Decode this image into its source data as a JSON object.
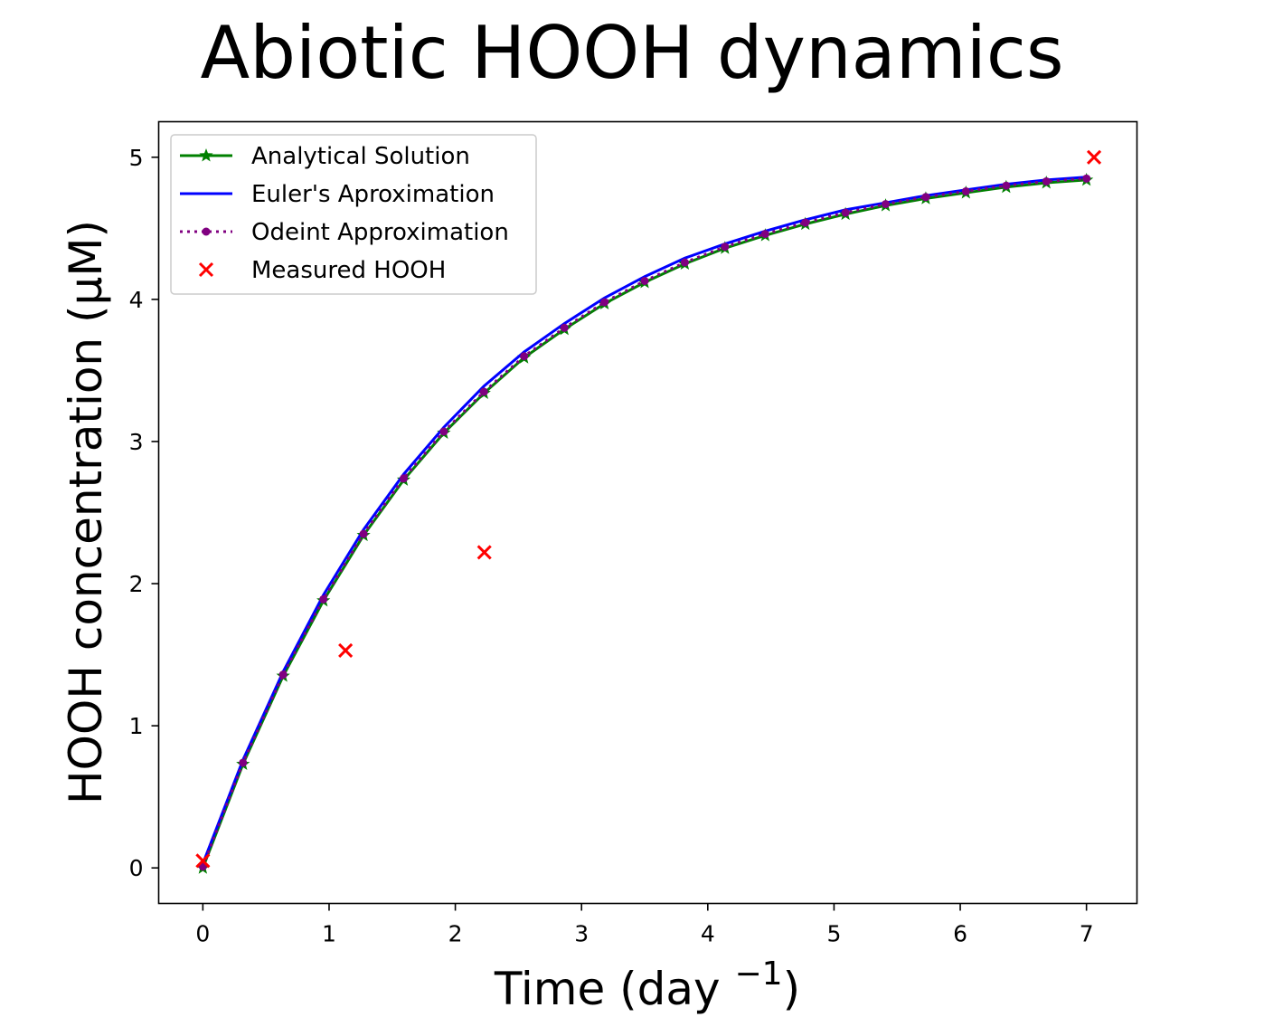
{
  "chart_data": {
    "type": "line",
    "title": "Abiotic HOOH dynamics",
    "xlabel": "Time (day ",
    "xlabel_superscript": "−1",
    "xlabel_suffix": ")",
    "ylabel": "HOOH concentration (μM)",
    "xlim": [
      -0.35,
      7.4
    ],
    "ylim": [
      -0.25,
      5.25
    ],
    "x_ticks": [
      0,
      1,
      2,
      3,
      4,
      5,
      6,
      7
    ],
    "y_ticks": [
      0,
      1,
      2,
      3,
      4,
      5
    ],
    "x_tick_labels": [
      "0",
      "1",
      "2",
      "3",
      "4",
      "5",
      "6",
      "7"
    ],
    "y_tick_labels": [
      "0",
      "1",
      "2",
      "3",
      "4",
      "5"
    ],
    "grid": false,
    "legend_position": "upper-left",
    "series": [
      {
        "name": "Analytical Solution",
        "style": "line-star",
        "color": "#008000",
        "x": [
          0,
          0.318,
          0.636,
          0.955,
          1.273,
          1.591,
          1.909,
          2.227,
          2.545,
          2.864,
          3.182,
          3.5,
          3.818,
          4.136,
          4.455,
          4.773,
          5.091,
          5.409,
          5.727,
          6.045,
          6.364,
          6.682,
          7.0
        ],
        "y": [
          0.0,
          0.73,
          1.35,
          1.88,
          2.34,
          2.73,
          3.06,
          3.34,
          3.59,
          3.79,
          3.97,
          4.12,
          4.25,
          4.36,
          4.45,
          4.53,
          4.6,
          4.66,
          4.71,
          4.75,
          4.79,
          4.82,
          4.84
        ]
      },
      {
        "name": "Euler's Aproximation",
        "style": "line",
        "color": "#0000ff",
        "x": [
          0,
          0.318,
          0.636,
          0.955,
          1.273,
          1.591,
          1.909,
          2.227,
          2.545,
          2.864,
          3.182,
          3.5,
          3.818,
          4.136,
          4.455,
          4.773,
          5.091,
          5.409,
          5.727,
          6.045,
          6.364,
          6.682,
          7.0
        ],
        "y": [
          0.03,
          0.76,
          1.38,
          1.92,
          2.38,
          2.77,
          3.1,
          3.39,
          3.63,
          3.83,
          4.01,
          4.16,
          4.29,
          4.39,
          4.48,
          4.56,
          4.63,
          4.68,
          4.73,
          4.77,
          4.81,
          4.84,
          4.86
        ]
      },
      {
        "name": "Odeint Approximation",
        "style": "dotted-circle",
        "color": "#800080",
        "x": [
          0,
          0.318,
          0.636,
          0.955,
          1.273,
          1.591,
          1.909,
          2.227,
          2.545,
          2.864,
          3.182,
          3.5,
          3.818,
          4.136,
          4.455,
          4.773,
          5.091,
          5.409,
          5.727,
          6.045,
          6.364,
          6.682,
          7.0
        ],
        "y": [
          0.01,
          0.74,
          1.36,
          1.89,
          2.35,
          2.74,
          3.07,
          3.35,
          3.6,
          3.8,
          3.98,
          4.13,
          4.26,
          4.37,
          4.46,
          4.54,
          4.61,
          4.67,
          4.72,
          4.76,
          4.8,
          4.83,
          4.85
        ]
      },
      {
        "name": "Measured HOOH",
        "style": "scatter-x",
        "color": "#ff0000",
        "x": [
          0.0,
          1.13,
          2.23,
          7.06
        ],
        "y": [
          0.05,
          1.53,
          2.22,
          5.0
        ]
      }
    ]
  }
}
